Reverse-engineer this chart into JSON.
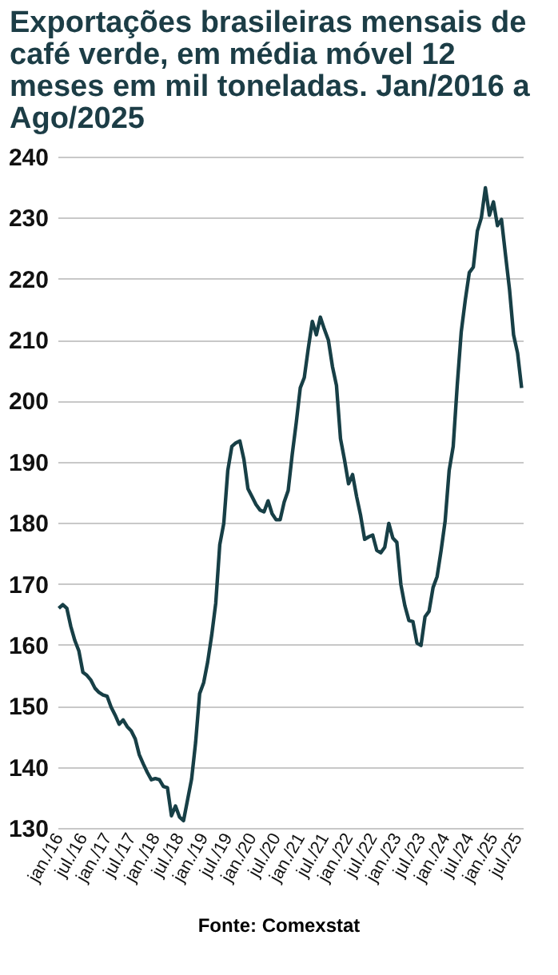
{
  "chart_data": {
    "type": "line",
    "title": "Exportações brasileiras mensais de café verde, em média móvel 12 meses em mil toneladas. Jan/2016 a Ago/2025",
    "categories": [
      "jan./16",
      null,
      null,
      null,
      null,
      null,
      "jul./16",
      null,
      null,
      null,
      null,
      null,
      "jan./17",
      null,
      null,
      null,
      null,
      null,
      "jul./17",
      null,
      null,
      null,
      null,
      null,
      "jan./18",
      null,
      null,
      null,
      null,
      null,
      "jul./18",
      null,
      null,
      null,
      null,
      null,
      "jan./19",
      null,
      null,
      null,
      null,
      null,
      "jul./19",
      null,
      null,
      null,
      null,
      null,
      "jan./20",
      null,
      null,
      null,
      null,
      null,
      "jul./20",
      null,
      null,
      null,
      null,
      null,
      "jan./21",
      null,
      null,
      null,
      null,
      null,
      "jul./21",
      null,
      null,
      null,
      null,
      null,
      "jan./22",
      null,
      null,
      null,
      null,
      null,
      "jul./22",
      null,
      null,
      null,
      null,
      null,
      "jan./23",
      null,
      null,
      null,
      null,
      null,
      "jul./23",
      null,
      null,
      null,
      null,
      null,
      "jan./24",
      null,
      null,
      null,
      null,
      null,
      "jul./24",
      null,
      null,
      null,
      null,
      null,
      "jan./25",
      null,
      null,
      null,
      null,
      null,
      "jul./25",
      null
    ],
    "series": [
      {
        "color": "#173f46",
        "values": [
          166.0,
          166.6,
          166.0,
          163.0,
          160.7,
          159.0,
          155.5,
          155.0,
          154.2,
          152.9,
          152.2,
          151.8,
          151.6,
          149.8,
          148.5,
          147.0,
          147.7,
          146.6,
          145.9,
          144.6,
          142.0,
          140.5,
          139.1,
          137.9,
          138.1,
          137.9,
          136.8,
          136.6,
          132.0,
          133.6,
          131.8,
          131.2,
          134.6,
          138.0,
          144.0,
          152.0,
          153.8,
          157.2,
          161.6,
          166.8,
          176.4,
          179.9,
          188.6,
          192.5,
          193.1,
          193.4,
          190.4,
          185.6,
          184.3,
          183.0,
          182.1,
          181.8,
          183.6,
          181.5,
          180.5,
          180.5,
          183.4,
          185.3,
          191.2,
          196.4,
          202.1,
          203.8,
          208.6,
          213.0,
          210.8,
          213.7,
          211.7,
          209.9,
          205.6,
          202.5,
          193.8,
          190.3,
          186.4,
          187.9,
          184.3,
          181.2,
          177.3,
          177.7,
          178.0,
          175.5,
          175.1,
          176.0,
          179.9,
          177.5,
          176.8,
          169.9,
          166.4,
          164.0,
          163.8,
          160.3,
          159.9,
          164.6,
          165.5,
          169.4,
          171.2,
          175.5,
          180.3,
          188.6,
          192.5,
          202.5,
          211.3,
          216.5,
          221.0,
          221.9,
          227.8,
          230.0,
          234.9,
          230.4,
          232.6,
          228.7,
          229.7,
          223.9,
          218.2,
          210.8,
          207.8,
          202.1
        ]
      }
    ],
    "ylim": [
      130,
      240
    ],
    "yticks": [
      130,
      140,
      150,
      160,
      170,
      180,
      190,
      200,
      210,
      220,
      230,
      240
    ],
    "grid": "y",
    "legend": false,
    "marker": "none",
    "line_style": "solid",
    "annotations": [
      "Fonte: Comexstat"
    ]
  }
}
